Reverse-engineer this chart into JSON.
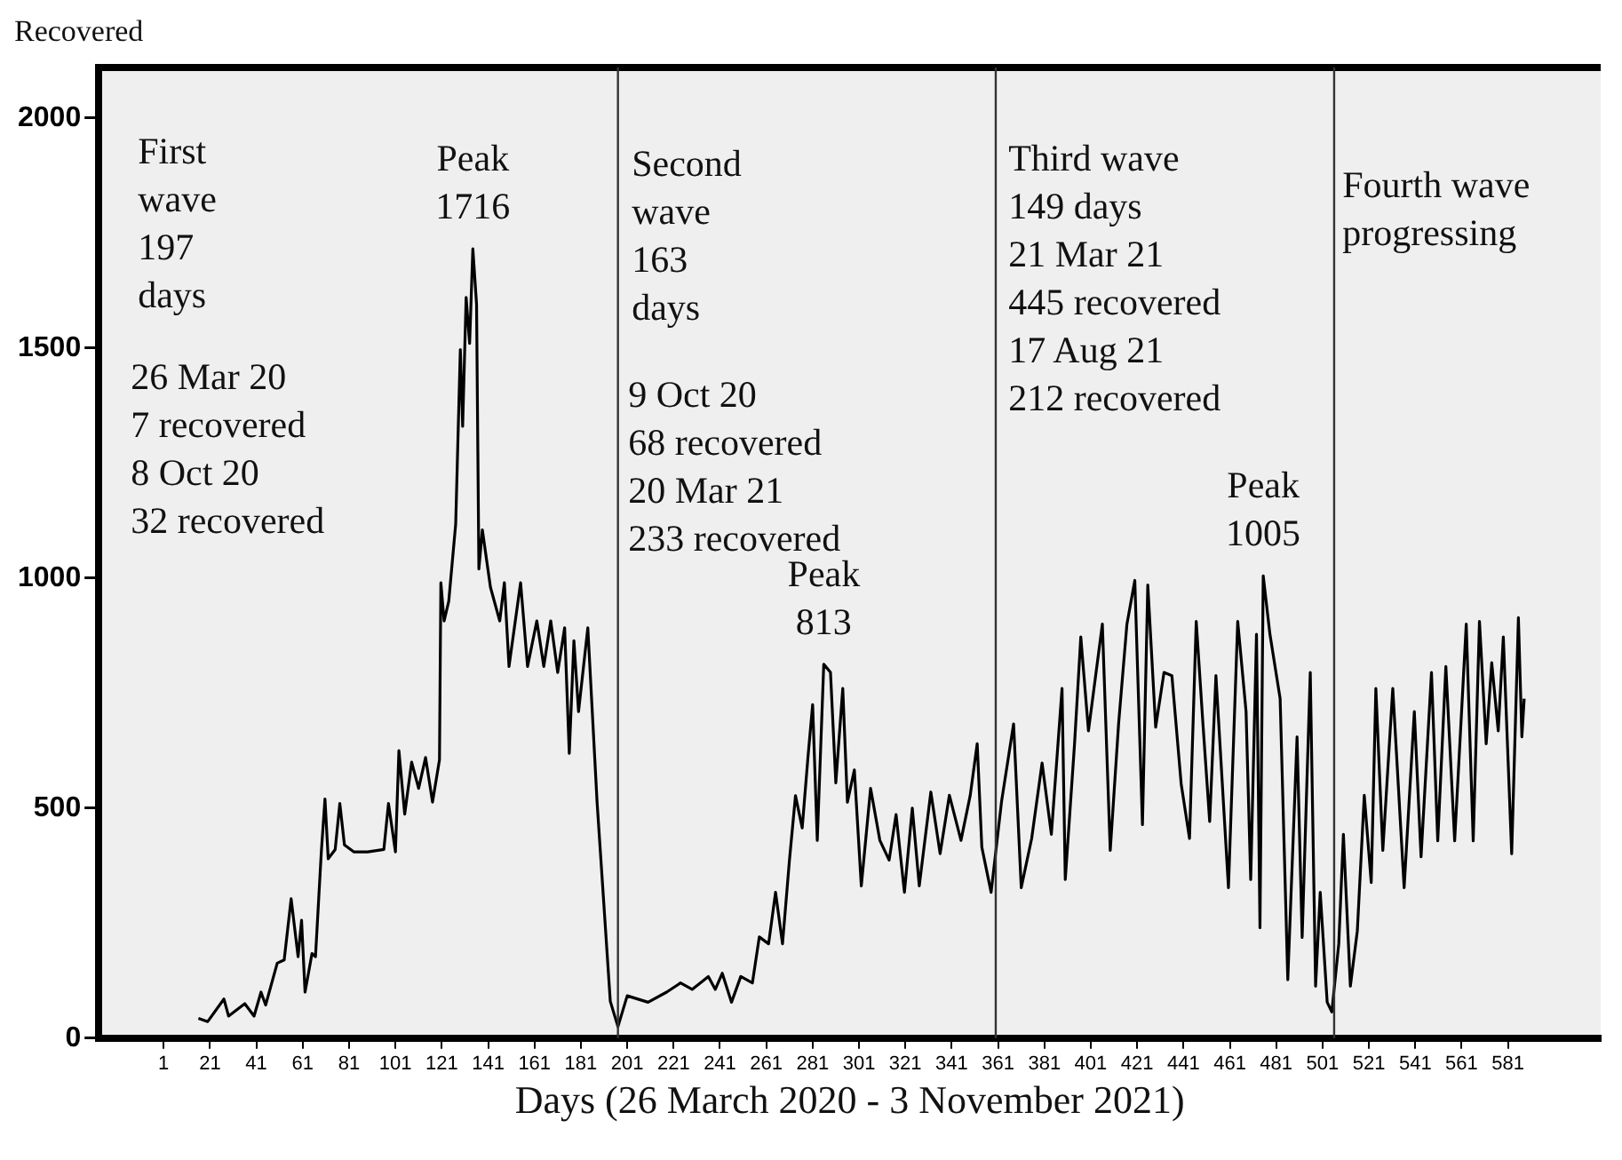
{
  "chart_data": {
    "type": "line",
    "ylabel": "Recovered",
    "xlabel": "Days (26 March 2020 - 3 November 2021)",
    "xlim": [
      -27,
      621
    ],
    "ylim": [
      0,
      2110
    ],
    "xticks": [
      1,
      21,
      41,
      61,
      81,
      101,
      121,
      141,
      161,
      181,
      201,
      221,
      241,
      261,
      281,
      301,
      321,
      341,
      361,
      381,
      401,
      421,
      441,
      461,
      481,
      501,
      521,
      541,
      561,
      581
    ],
    "yticks": [
      0,
      500,
      1000,
      1500,
      2000
    ],
    "grid": false,
    "legend": false,
    "marker": "none",
    "line_style": "solid",
    "series": [
      {
        "color": "#000000",
        "x": [
          16,
          20,
          27,
          29,
          36,
          40,
          43,
          45,
          50,
          53,
          56,
          59,
          60.5,
          62,
          65,
          66.5,
          69,
          70.6,
          72,
          75,
          77,
          79,
          83,
          89,
          96,
          98,
          101,
          102.5,
          105,
          108,
          111,
          114,
          117,
          120,
          120.6,
          122,
          124,
          127,
          129,
          130,
          131.5,
          133,
          134.4,
          136,
          137,
          138.5,
          142,
          146,
          148,
          150,
          155,
          158,
          162,
          165,
          168,
          171,
          174,
          176,
          178,
          180,
          184,
          188,
          193.7,
          197,
          201,
          210,
          218,
          224,
          229,
          236,
          239,
          242,
          246,
          250,
          255,
          258,
          262,
          265,
          268,
          271,
          273.6,
          276.5,
          279,
          281,
          283,
          285.8,
          288.7,
          291,
          294,
          296,
          299,
          302,
          306,
          310,
          314,
          317,
          320.6,
          324,
          327,
          332,
          336,
          340,
          345,
          349,
          352,
          354,
          358,
          362.5,
          367.7,
          371,
          375.5,
          380,
          384,
          388.6,
          390,
          394,
          396.7,
          400,
          406,
          409.4,
          413,
          416.6,
          420,
          423.3,
          425.6,
          429,
          432.6,
          436,
          440,
          443.6,
          446.5,
          449.4,
          452.3,
          455,
          460.4,
          464.4,
          468,
          470,
          472.5,
          474,
          475.4,
          478.3,
          482.7,
          486,
          490,
          492.2,
          495.7,
          498,
          500,
          503,
          505,
          508,
          510,
          513,
          516,
          519,
          522,
          524,
          527,
          531.3,
          536.2,
          540.6,
          543.5,
          548,
          550.7,
          554.2,
          558,
          563,
          566,
          568.7,
          571.6,
          574,
          576.8,
          579,
          582.6,
          585.5,
          587,
          588
        ],
        "values": [
          43,
          36,
          85,
          48,
          75,
          48,
          100,
          72,
          163,
          170,
          303,
          177,
          256,
          100,
          184,
          177,
          403,
          520,
          390,
          410,
          510,
          420,
          405,
          405,
          410,
          510,
          405,
          625,
          487,
          600,
          543,
          610,
          513,
          605,
          990,
          907,
          950,
          1118,
          1497,
          1330,
          1610,
          1510,
          1716,
          1595,
          1020,
          1105,
          980,
          907,
          990,
          808,
          990,
          808,
          907,
          808,
          907,
          795,
          892,
          619,
          864,
          710,
          892,
          513,
          80,
          25,
          92,
          78,
          100,
          120,
          106,
          134,
          106,
          141,
          78,
          134,
          120,
          220,
          205,
          317,
          205,
          387,
          527,
          457,
          612,
          725,
          430,
          813,
          795,
          555,
          760,
          513,
          583,
          331,
          543,
          430,
          387,
          486,
          317,
          500,
          331,
          535,
          401,
          528,
          430,
          528,
          640,
          415,
          317,
          514,
          683,
          327,
          434,
          598,
          443,
          760,
          345,
          640,
          872,
          668,
          900,
          408,
          683,
          900,
          995,
          464,
          985,
          676,
          795,
          788,
          553,
          434,
          906,
          683,
          471,
          788,
          327,
          906,
          710,
          345,
          878,
          240,
          1005,
          878,
          738,
          127,
          655,
          219,
          795,
          113,
          317,
          78,
          57,
          205,
          443,
          113,
          233,
          528,
          338,
          760,
          408,
          760,
          327,
          710,
          394,
          795,
          429,
          808,
          429,
          900,
          429,
          906,
          640,
          816,
          668,
          872,
          401,
          914,
          655,
          738
        ]
      }
    ],
    "ref_lines": [
      {
        "axis": "x",
        "value": 197
      },
      {
        "axis": "x",
        "value": 360
      },
      {
        "axis": "x",
        "value": 506
      }
    ],
    "annotations": [
      "First\nwave\n197\ndays",
      "26 Mar 20\n7 recovered\n8 Oct 20\n32 recovered",
      {
        "text": "Peak\n1716",
        "x": 134.4,
        "y": 1716
      },
      "Second\nwave\n163\ndays",
      "9 Oct 20\n68 recovered\n20 Mar 21\n233 recovered",
      {
        "text": "Peak\n813",
        "x": 285.8,
        "y": 813
      },
      "Third wave\n149 days\n21 Mar 21\n445 recovered\n17 Aug 21\n212 recovered",
      {
        "text": "Peak\n1005",
        "x": 475.4,
        "y": 1005
      },
      "Fourth wave\nprogressing"
    ]
  }
}
